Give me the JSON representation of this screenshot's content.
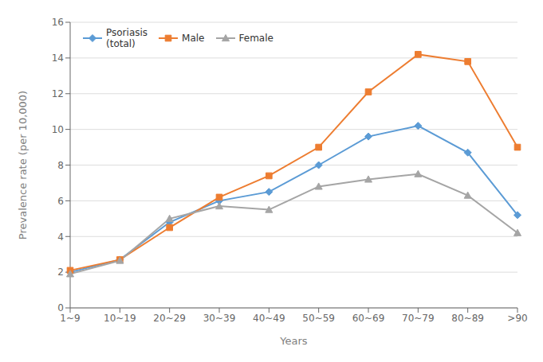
{
  "chart_data": {
    "type": "line",
    "categories": [
      "1~9",
      "10~19",
      "20~29",
      "30~39",
      "40~49",
      "50~59",
      "60~69",
      "70~79",
      "80~89",
      ">90"
    ],
    "series": [
      {
        "name": "Psoriasis\n(total)",
        "color": "#5b9bd5",
        "marker": "diamond",
        "values": [
          2.0,
          2.7,
          4.8,
          6.0,
          6.5,
          8.0,
          9.6,
          10.2,
          8.7,
          5.2
        ]
      },
      {
        "name": "Male",
        "color": "#ed7d31",
        "marker": "square",
        "values": [
          2.1,
          2.7,
          4.5,
          6.2,
          7.4,
          9.0,
          12.1,
          14.2,
          13.8,
          9.0
        ]
      },
      {
        "name": "Female",
        "color": "#a5a5a5",
        "marker": "triangle",
        "values": [
          1.9,
          2.65,
          5.0,
          5.7,
          5.5,
          6.8,
          7.2,
          7.5,
          6.3,
          4.2
        ]
      }
    ],
    "xlabel": "Years",
    "ylabel": "Prevalence rate (per 10,000)",
    "ylim": [
      0,
      16
    ],
    "yticks": [
      0,
      2,
      4,
      6,
      8,
      10,
      12,
      14,
      16
    ],
    "grid": "y",
    "legend": "upper left"
  }
}
